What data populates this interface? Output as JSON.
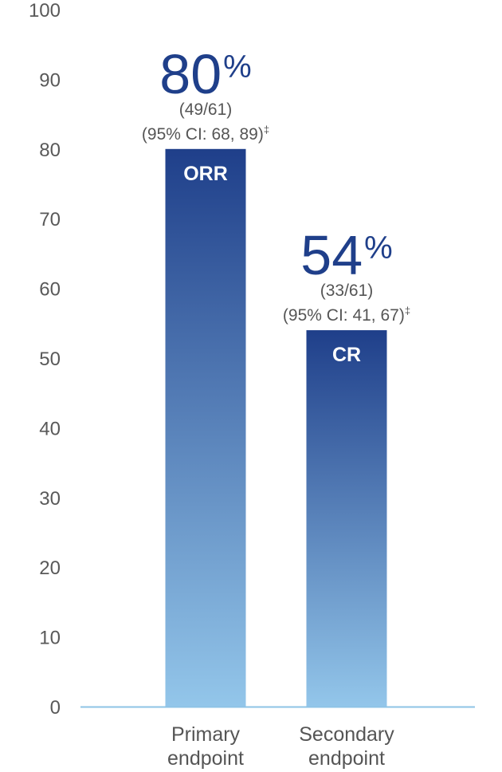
{
  "chart_data": {
    "type": "bar",
    "ylim": [
      0,
      100
    ],
    "yticks": [
      0,
      10,
      20,
      30,
      40,
      50,
      60,
      70,
      80,
      90,
      100
    ],
    "grid": false,
    "categories": [
      [
        "Primary",
        "endpoint"
      ],
      [
        "Secondary",
        "endpoint"
      ]
    ],
    "bars": [
      {
        "value": 80,
        "inner_label": "ORR",
        "value_text": "80",
        "unit": "%",
        "count": "(49/61)",
        "ci": "(95% CI: 68, 89)",
        "ci_mark": "‡"
      },
      {
        "value": 54,
        "inner_label": "CR",
        "value_text": "54",
        "unit": "%",
        "count": "(33/61)",
        "ci": "(95% CI: 41, 67)",
        "ci_mark": "‡"
      }
    ],
    "colors": {
      "bar_top": "#1f3f8a",
      "bar_bottom": "#93c6ea",
      "axis": "#8ec3e6",
      "value_text": "#1f3f8a"
    }
  }
}
